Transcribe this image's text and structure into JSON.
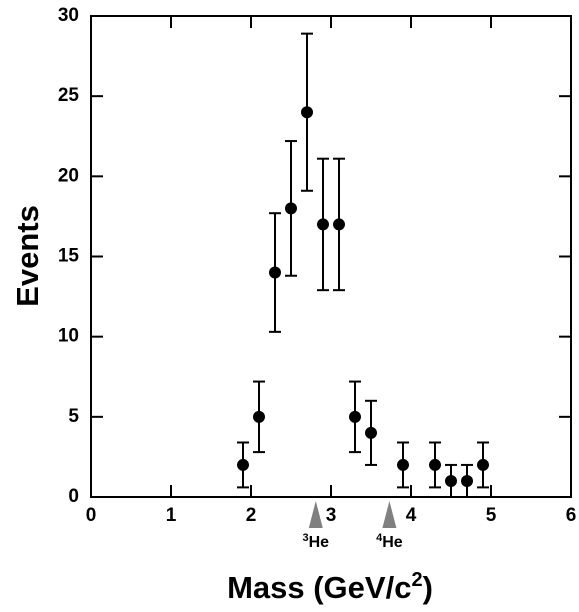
{
  "chart_data": {
    "type": "scatter",
    "x_label": {
      "text": "Mass (GeV/c",
      "sup": "2",
      "close": ")"
    },
    "y_label": "Events",
    "x": [
      1.9,
      2.1,
      2.3,
      2.5,
      2.7,
      2.9,
      3.1,
      3.3,
      3.5,
      3.9,
      4.3,
      4.5,
      4.7,
      4.9
    ],
    "y": [
      2,
      5,
      14,
      18,
      24,
      17,
      17,
      5,
      4,
      2,
      2,
      1,
      1,
      2
    ],
    "yerr": [
      1.4,
      2.2,
      3.7,
      4.2,
      4.9,
      4.1,
      4.1,
      2.2,
      2,
      1.4,
      1.4,
      1,
      1,
      1.4
    ],
    "color": "#000000",
    "xlim": [
      0,
      6
    ],
    "xticks": [
      0,
      1,
      2,
      3,
      4,
      5,
      6
    ],
    "ylim": [
      0,
      30
    ],
    "yticks": [
      0,
      5,
      10,
      15,
      20,
      25,
      30
    ],
    "annotations": [
      {
        "x": 2.81,
        "sup": "3",
        "text": "He"
      },
      {
        "x": 3.73,
        "sup": "4",
        "text": "He"
      }
    ],
    "annotation_color": "#808080"
  }
}
